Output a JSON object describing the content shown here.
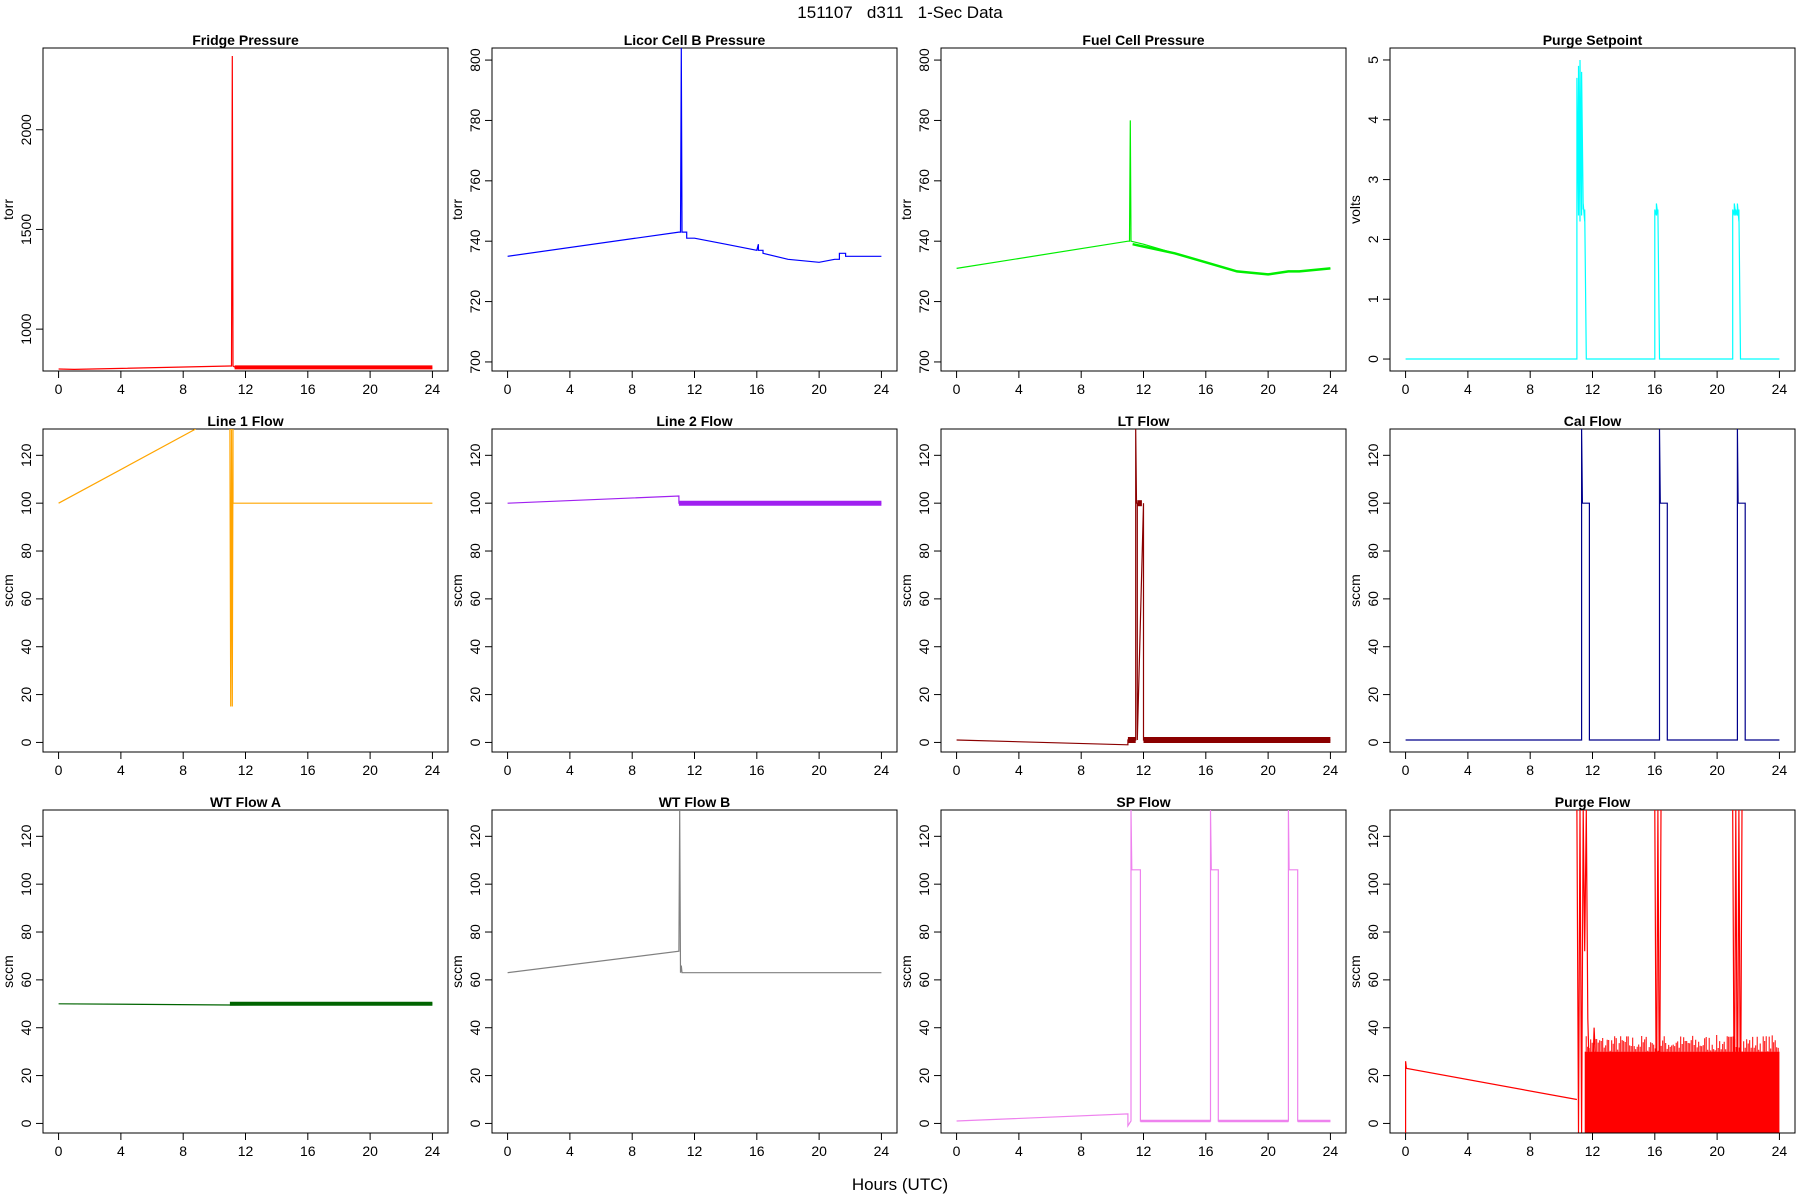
{
  "figure": {
    "title": "151107   d311   1-Sec Data",
    "xlabel": "Hours (UTC)"
  },
  "chart_data": [
    {
      "type": "line",
      "title": "Fridge Pressure",
      "ylabel": "torr",
      "color": "#ff0000",
      "xlim": [
        -1,
        25
      ],
      "ylim": [
        790,
        2410
      ],
      "yticks": [
        1000,
        1500,
        2000
      ],
      "xticks": [
        0,
        4,
        8,
        12,
        16,
        20,
        24
      ],
      "series": [
        {
          "x": [
            0,
            1,
            11.0,
            11.1,
            11.15,
            11.2,
            11.3,
            12,
            24
          ],
          "y": [
            800,
            798,
            815,
            815,
            2370,
            815,
            810,
            810,
            805
          ],
          "lw": 1.2
        },
        {
          "x": [
            11.3,
            24
          ],
          "y": [
            808,
            808
          ],
          "lw": 4
        }
      ]
    },
    {
      "type": "line",
      "title": "Licor Cell B Pressure",
      "ylabel": "torr",
      "color": "#0000ff",
      "xlim": [
        -1,
        25
      ],
      "ylim": [
        697,
        804
      ],
      "yticks": [
        700,
        720,
        740,
        760,
        780,
        800
      ],
      "xticks": [
        0,
        4,
        8,
        12,
        16,
        20,
        24
      ],
      "series": [
        {
          "x": [
            0,
            11.0,
            11.1,
            11.15,
            11.2,
            11.5,
            11.5,
            12.0,
            14,
            16.0,
            16.1,
            16.1,
            16.4,
            16.4,
            18,
            20,
            21.0,
            21.3,
            21.3,
            21.7,
            21.7,
            24
          ],
          "y": [
            735,
            743,
            743,
            804,
            743,
            743,
            741,
            741,
            739,
            737,
            739,
            737,
            737,
            736,
            734,
            733,
            734,
            734,
            736,
            736,
            735,
            735
          ],
          "lw": 1.2
        }
      ]
    },
    {
      "type": "line",
      "title": "Fuel Cell Pressure",
      "ylabel": "torr",
      "color": "#00ee00",
      "xlim": [
        -1,
        25
      ],
      "ylim": [
        697,
        804
      ],
      "yticks": [
        700,
        720,
        740,
        760,
        780,
        800
      ],
      "xticks": [
        0,
        4,
        8,
        12,
        16,
        20,
        24
      ],
      "series": [
        {
          "x": [
            0,
            11.0,
            11.1,
            11.15,
            11.2,
            12,
            14,
            16,
            18,
            20,
            21.3,
            22,
            24
          ],
          "y": [
            731,
            740,
            740,
            780,
            740,
            739,
            736,
            733,
            730,
            729,
            730,
            730,
            731
          ],
          "lw": 1.2
        },
        {
          "x": [
            11.3,
            14,
            16,
            18,
            20,
            21.3,
            22,
            24
          ],
          "y": [
            739,
            736,
            733,
            730,
            729,
            730,
            730,
            731
          ],
          "lw": 2.5
        }
      ]
    },
    {
      "type": "line",
      "title": "Purge Setpoint",
      "ylabel": "volts",
      "color": "#00ffff",
      "xlim": [
        -1,
        25
      ],
      "ylim": [
        -0.2,
        5.2
      ],
      "yticks": [
        0,
        1,
        2,
        3,
        4,
        5
      ],
      "xticks": [
        0,
        4,
        8,
        12,
        16,
        20,
        24
      ],
      "series": [
        {
          "x": [
            0,
            11.0,
            11.0,
            11.1,
            11.1,
            11.2,
            11.2,
            11.3,
            11.3,
            11.4,
            11.4,
            11.5,
            11.5,
            11.6,
            11.6,
            16.0,
            16.0,
            16.1,
            16.1,
            16.2,
            16.2,
            16.3,
            16.3,
            21.0,
            21.0,
            21.1,
            21.1,
            21.2,
            21.2,
            21.3,
            21.3,
            21.4,
            21.4,
            21.5,
            21.5,
            24
          ],
          "y": [
            0,
            0,
            4.7,
            2.4,
            4.9,
            2.3,
            5.0,
            2.4,
            4.8,
            2.5,
            2.6,
            2.3,
            2.5,
            0,
            0,
            0,
            2.5,
            2.4,
            2.6,
            2.4,
            2.5,
            0,
            0,
            0,
            2.5,
            2.4,
            2.6,
            2.4,
            2.5,
            2.4,
            2.6,
            2.3,
            2.5,
            0,
            0,
            0
          ],
          "lw": 1.2
        }
      ]
    },
    {
      "type": "line",
      "title": "Line 1 Flow",
      "ylabel": "sccm",
      "color": "#ffa500",
      "xlim": [
        -1,
        25
      ],
      "ylim": [
        -4,
        131
      ],
      "yticks": [
        0,
        20,
        40,
        60,
        80,
        100,
        120
      ],
      "xticks": [
        0,
        4,
        8,
        12,
        16,
        20,
        24
      ],
      "series": [
        {
          "x": [
            0,
            8.8
          ],
          "y": [
            100,
            131
          ],
          "lw": 1.2
        },
        {
          "x": [
            11.0,
            11.05,
            11.1,
            11.15,
            11.2,
            11.2,
            24
          ],
          "y": [
            131,
            15,
            131,
            15,
            131,
            100,
            100
          ],
          "lw": 1.2
        }
      ]
    },
    {
      "type": "line",
      "title": "Line 2 Flow",
      "ylabel": "sccm",
      "color": "#a020f0",
      "xlim": [
        -1,
        25
      ],
      "ylim": [
        -4,
        131
      ],
      "yticks": [
        0,
        20,
        40,
        60,
        80,
        100,
        120
      ],
      "xticks": [
        0,
        4,
        8,
        12,
        16,
        20,
        24
      ],
      "series": [
        {
          "x": [
            0,
            11.0,
            11.0,
            24
          ],
          "y": [
            100,
            103,
            100,
            100
          ],
          "lw": 1.2
        },
        {
          "x": [
            11.0,
            24
          ],
          "y": [
            100,
            100
          ],
          "lw": 5
        }
      ]
    },
    {
      "type": "line",
      "title": "LT Flow",
      "ylabel": "sccm",
      "color": "#8b0000",
      "xlim": [
        -1,
        25
      ],
      "ylim": [
        -4,
        131
      ],
      "yticks": [
        0,
        20,
        40,
        60,
        80,
        100,
        120
      ],
      "xticks": [
        0,
        4,
        8,
        12,
        16,
        20,
        24
      ],
      "series": [
        {
          "x": [
            0,
            11.0,
            11.0,
            11.5,
            11.5,
            11.55,
            11.6,
            11.6,
            12.0,
            12.0,
            24
          ],
          "y": [
            1,
            -1,
            1,
            1,
            131,
            100,
            100,
            1,
            100,
            1,
            1
          ],
          "lw": 1.2
        },
        {
          "x": [
            11.0,
            11.5
          ],
          "y": [
            1,
            1
          ],
          "lw": 6
        },
        {
          "x": [
            11.6,
            11.9
          ],
          "y": [
            100,
            100
          ],
          "lw": 6
        },
        {
          "x": [
            12.0,
            24
          ],
          "y": [
            1,
            1
          ],
          "lw": 6
        }
      ]
    },
    {
      "type": "line",
      "title": "Cal Flow",
      "ylabel": "sccm",
      "color": "#00008b",
      "xlim": [
        -1,
        25
      ],
      "ylim": [
        -4,
        131
      ],
      "yticks": [
        0,
        20,
        40,
        60,
        80,
        100,
        120
      ],
      "xticks": [
        0,
        4,
        8,
        12,
        16,
        20,
        24
      ],
      "series": [
        {
          "x": [
            0,
            11.3,
            11.3,
            11.35,
            11.4,
            11.8,
            11.8,
            16.3,
            16.3,
            16.35,
            16.4,
            16.8,
            16.8,
            21.3,
            21.3,
            21.35,
            21.4,
            21.8,
            21.8,
            24
          ],
          "y": [
            1,
            1,
            131,
            100,
            100,
            100,
            1,
            1,
            131,
            100,
            100,
            100,
            1,
            1,
            131,
            100,
            100,
            100,
            1,
            1
          ],
          "lw": 1.2
        }
      ]
    },
    {
      "type": "line",
      "title": "WT Flow A",
      "ylabel": "sccm",
      "color": "#006400",
      "xlim": [
        -1,
        25
      ],
      "ylim": [
        -4,
        131
      ],
      "yticks": [
        0,
        20,
        40,
        60,
        80,
        100,
        120
      ],
      "xticks": [
        0,
        4,
        8,
        12,
        16,
        20,
        24
      ],
      "series": [
        {
          "x": [
            0,
            11.0,
            24
          ],
          "y": [
            50,
            49.5,
            50
          ],
          "lw": 1.2
        },
        {
          "x": [
            11.0,
            24
          ],
          "y": [
            50,
            50
          ],
          "lw": 4
        }
      ]
    },
    {
      "type": "line",
      "title": "WT Flow B",
      "ylabel": "sccm",
      "color": "#808080",
      "xlim": [
        -1,
        25
      ],
      "ylim": [
        -4,
        131
      ],
      "yticks": [
        0,
        20,
        40,
        60,
        80,
        100,
        120
      ],
      "xticks": [
        0,
        4,
        8,
        12,
        16,
        20,
        24
      ],
      "series": [
        {
          "x": [
            0,
            11.0,
            11.05,
            11.1,
            11.15,
            11.2,
            24
          ],
          "y": [
            63,
            72,
            131,
            63,
            66,
            63,
            63
          ],
          "lw": 1.2
        }
      ]
    },
    {
      "type": "line",
      "title": "SP Flow",
      "ylabel": "sccm",
      "color": "#ee82ee",
      "xlim": [
        -1,
        25
      ],
      "ylim": [
        -4,
        131
      ],
      "yticks": [
        0,
        20,
        40,
        60,
        80,
        100,
        120
      ],
      "xticks": [
        0,
        4,
        8,
        12,
        16,
        20,
        24
      ],
      "series": [
        {
          "x": [
            0,
            11.0,
            11.0,
            11.2,
            11.2,
            11.25,
            11.3,
            11.8,
            11.8,
            16.3,
            16.3,
            16.35,
            16.4,
            16.8,
            16.8,
            21.3,
            21.3,
            21.35,
            21.4,
            21.9,
            21.9,
            24
          ],
          "y": [
            1,
            4,
            -1,
            1,
            131,
            106,
            106,
            106,
            1,
            1,
            131,
            106,
            106,
            106,
            1,
            1,
            131,
            106,
            106,
            106,
            1,
            1
          ],
          "lw": 1.2
        },
        {
          "x": [
            11.8,
            16.3
          ],
          "y": [
            1,
            1
          ],
          "lw": 2.5
        },
        {
          "x": [
            16.8,
            21.3
          ],
          "y": [
            1,
            1
          ],
          "lw": 2.5
        },
        {
          "x": [
            21.9,
            24
          ],
          "y": [
            1,
            1
          ],
          "lw": 2.5
        }
      ]
    },
    {
      "type": "line",
      "title": "Purge Flow",
      "ylabel": "sccm",
      "color": "#ff0000",
      "xlim": [
        -1,
        25
      ],
      "ylim": [
        -4,
        131
      ],
      "yticks": [
        0,
        20,
        40,
        60,
        80,
        100,
        120
      ],
      "xticks": [
        0,
        4,
        8,
        12,
        16,
        20,
        24
      ],
      "series": [
        {
          "x": [
            0,
            0,
            0.05,
            11.0
          ],
          "y": [
            -4,
            26,
            23,
            10
          ],
          "lw": 1.2
        },
        {
          "x": [
            11.0,
            11.1,
            11.2,
            11.3,
            11.4,
            11.5,
            11.6,
            11.7,
            11.9,
            12.1,
            12.4
          ],
          "y": [
            131,
            -4,
            131,
            -4,
            131,
            72,
            131,
            44,
            -4,
            40,
            -4
          ],
          "lw": 1.2
        },
        {
          "x": [
            16.0,
            16.1,
            16.2,
            16.3,
            16.4
          ],
          "y": [
            131,
            -4,
            131,
            -4,
            131
          ],
          "lw": 1.2
        },
        {
          "x": [
            21.0,
            21.1,
            21.2,
            21.3,
            21.4,
            21.5,
            21.6
          ],
          "y": [
            131,
            -4,
            131,
            -4,
            131,
            -4,
            131
          ],
          "lw": 1.2
        }
      ],
      "noise_band": {
        "x": [
          11.5,
          24
        ],
        "y": [
          -4,
          30
        ],
        "spikes_to": 37
      }
    }
  ]
}
